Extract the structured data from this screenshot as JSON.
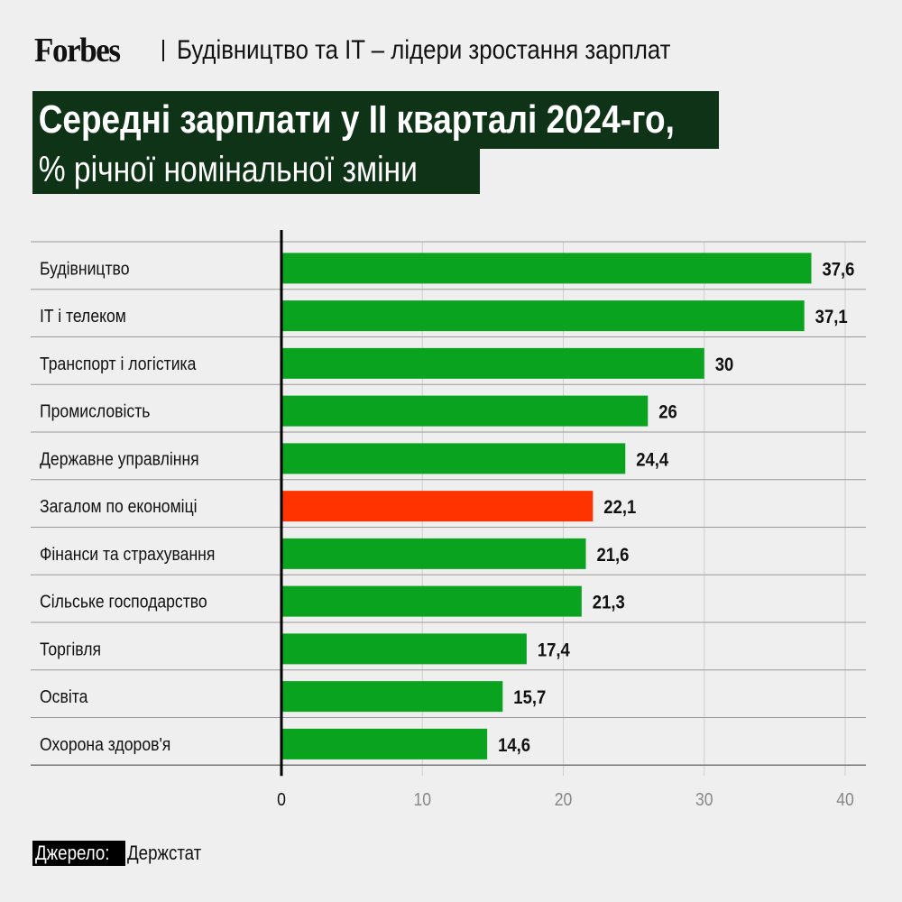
{
  "header": {
    "logo": "Forbes",
    "subtitle": "Будівництво та IT – лідери зростання зарплат"
  },
  "title": {
    "line1": "Середні зарплати у II кварталі 2024-го,",
    "line2": "% річної номінальної зміни"
  },
  "source": {
    "label": "Джерело:",
    "value": "Держстат"
  },
  "colors": {
    "bar": "#0aa31f",
    "highlight": "#ff3300",
    "title_bg": "#0f3316"
  },
  "chart_data": {
    "type": "bar",
    "orientation": "horizontal",
    "categories": [
      "Будівництво",
      "IT і телеком",
      "Транспорт і логістика",
      "Промисловість",
      "Державне управління",
      "Загалом по економіці",
      "Фінанси та страхування",
      "Сільське господарство",
      "Торгівля",
      "Освіта",
      "Охорона здоров'я"
    ],
    "values": [
      37.6,
      37.1,
      30,
      26,
      24.4,
      22.1,
      21.6,
      21.3,
      17.4,
      15.7,
      14.6
    ],
    "value_labels": [
      "37,6",
      "37,1",
      "30",
      "26",
      "24,4",
      "22,1",
      "21,6",
      "21,3",
      "17,4",
      "15,7",
      "14,6"
    ],
    "highlight_index": 5,
    "xlim": [
      0,
      40
    ],
    "xticks": [
      "0",
      "10",
      "20",
      "30",
      "40"
    ],
    "grid": true,
    "title": "Середні зарплати у II кварталі 2024-го, % річної номінальної зміни"
  }
}
